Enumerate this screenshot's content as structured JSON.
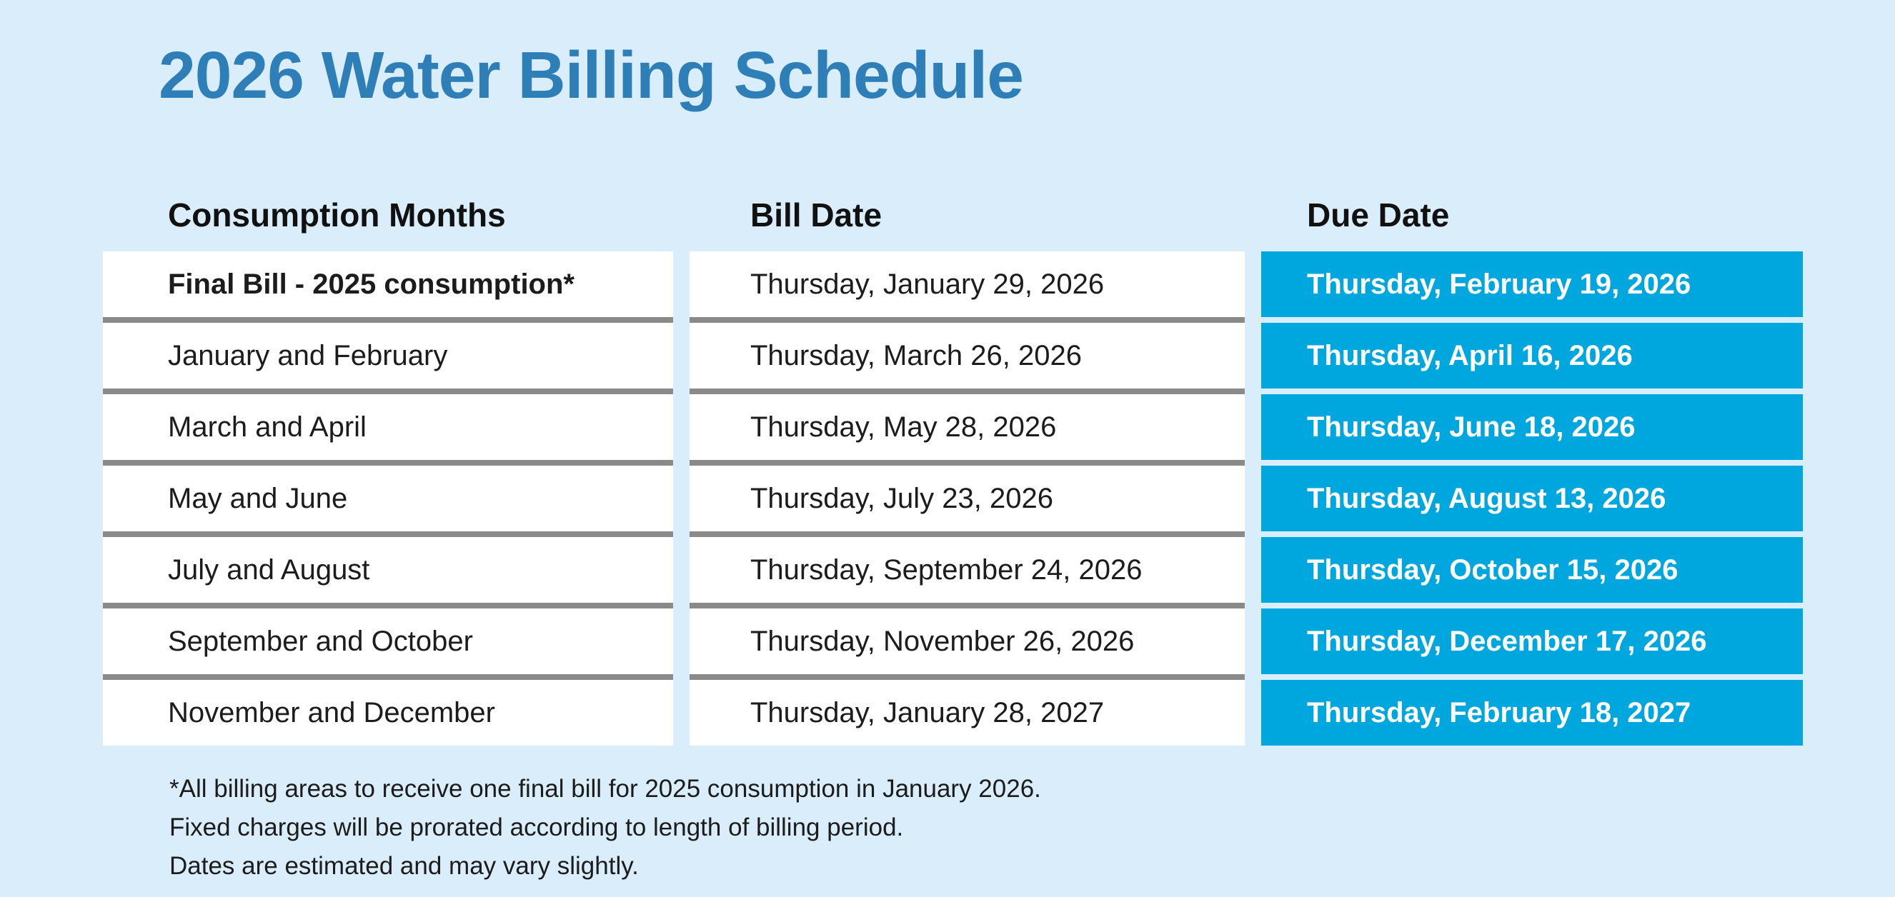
{
  "page": {
    "title": "2026 Water Billing Schedule"
  },
  "table": {
    "headers": {
      "consumption": "Consumption Months",
      "bill_date": "Bill Date",
      "due_date": "Due Date"
    },
    "rows": [
      {
        "consumption": "Final Bill - 2025 consumption*",
        "bill_date": "Thursday, January 29, 2026",
        "due_date": "Thursday, February 19, 2026"
      },
      {
        "consumption": "January and February",
        "bill_date": "Thursday, March 26, 2026",
        "due_date": "Thursday, April 16, 2026"
      },
      {
        "consumption": "March and April",
        "bill_date": "Thursday, May 28, 2026",
        "due_date": "Thursday, June 18, 2026"
      },
      {
        "consumption": "May and June",
        "bill_date": "Thursday, July 23, 2026",
        "due_date": "Thursday, August 13, 2026"
      },
      {
        "consumption": "July and August",
        "bill_date": "Thursday, September 24, 2026",
        "due_date": "Thursday, October 15, 2026"
      },
      {
        "consumption": "September and October",
        "bill_date": "Thursday, November 26, 2026",
        "due_date": "Thursday, December 17, 2026"
      },
      {
        "consumption": "November and December",
        "bill_date": "Thursday, January 28, 2027",
        "due_date": "Thursday, February 18, 2027"
      }
    ]
  },
  "footnotes": [
    "*All billing areas to receive one final bill for 2025 consumption in January 2026.",
    "Fixed charges will be prorated according to length of billing period.",
    "Dates are estimated and may vary slightly."
  ],
  "colors": {
    "background": "#D9EDFA",
    "title_blue": "#2E7EB8",
    "accent_cyan": "#00A7DF",
    "separator_gray": "#8A8A8A",
    "cell_white": "#FFFFFF",
    "text_dark": "#1C1C1C",
    "due_text": "#FFFFFF"
  }
}
